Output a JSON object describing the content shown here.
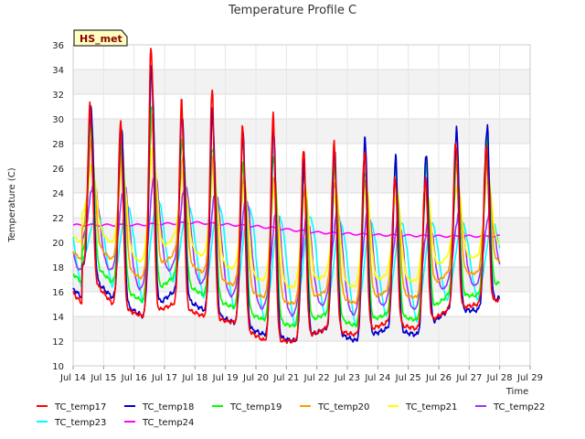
{
  "chart_data": {
    "type": "line",
    "title": "Temperature Profile C",
    "xlabel": "Time",
    "ylabel": "Temperature (C)",
    "site_badge": "HS_met",
    "ylim": [
      10,
      36
    ],
    "yticks": [
      10,
      12,
      14,
      16,
      18,
      20,
      22,
      24,
      26,
      28,
      30,
      32,
      34,
      36
    ],
    "xlim": [
      0,
      15
    ],
    "xticks": [
      {
        "x": 0,
        "label": "Jul 14"
      },
      {
        "x": 1,
        "label": "Jul 15"
      },
      {
        "x": 2,
        "label": "Jul 16"
      },
      {
        "x": 3,
        "label": "Jul 17"
      },
      {
        "x": 4,
        "label": "Jul 18"
      },
      {
        "x": 5,
        "label": "Jul 19"
      },
      {
        "x": 6,
        "label": "Jul 20"
      },
      {
        "x": 7,
        "label": "Jul 21"
      },
      {
        "x": 8,
        "label": "Jul 22"
      },
      {
        "x": 9,
        "label": "Jul 23"
      },
      {
        "x": 10,
        "label": "Jul 24"
      },
      {
        "x": 11,
        "label": "Jul 25"
      },
      {
        "x": 12,
        "label": "Jul 26"
      },
      {
        "x": 13,
        "label": "Jul 27"
      },
      {
        "x": 14,
        "label": "Jul 28"
      },
      {
        "x": 15,
        "label": "Jul 29"
      }
    ],
    "grid": true,
    "legend_position": "bottom",
    "days": [
      "Jul 14",
      "Jul 15",
      "Jul 16",
      "Jul 17",
      "Jul 18",
      "Jul 19",
      "Jul 20",
      "Jul 21",
      "Jul 22",
      "Jul 23",
      "Jul 24",
      "Jul 25",
      "Jul 26",
      "Jul 27",
      "Jul 28"
    ],
    "series": [
      {
        "name": "TC_temp17",
        "color": "#ff0000",
        "peaks": [
          31,
          29.5,
          35.5,
          31,
          32,
          29,
          30,
          27.5,
          28,
          27.5,
          25.5,
          25.5,
          28.5,
          28,
          24
        ],
        "troughs": [
          18,
          15.5,
          14,
          16,
          14.5,
          13.5,
          12.5,
          12,
          13,
          12,
          13,
          12.5,
          14.5,
          14.5,
          16
        ]
      },
      {
        "name": "TC_temp18",
        "color": "#0000cc",
        "peaks": [
          31.3,
          30,
          34.5,
          30.5,
          30.5,
          28.5,
          29,
          26,
          27,
          28,
          26.5,
          27,
          29,
          29.5,
          24
        ],
        "troughs": [
          18,
          15,
          14,
          15,
          14,
          13.5,
          12,
          12,
          13,
          12.5,
          13.5,
          13,
          14.5,
          15,
          15.5
        ]
      },
      {
        "name": "TC_temp19",
        "color": "#00ff00",
        "peaks": [
          30,
          28.5,
          31.5,
          28.5,
          28,
          26.5,
          27,
          25.5,
          26,
          25.5,
          26,
          26,
          27,
          28,
          23
        ]
      },
      {
        "name": "TC_temp20",
        "color": "#ff9900",
        "peaks": [
          28,
          27.5,
          30,
          27,
          27,
          25.5,
          25.5,
          24.5,
          25,
          25,
          25,
          24.5,
          26,
          26.5,
          22.5
        ]
      },
      {
        "name": "TC_temp21",
        "color": "#ffff00",
        "peaks": [
          26,
          26,
          27.5,
          25.5,
          25.5,
          24.5,
          24.5,
          24,
          24,
          24.5,
          24,
          24,
          24.5,
          25,
          22
        ]
      },
      {
        "name": "TC_temp22",
        "color": "#9933ff",
        "peaks": [
          24.8,
          24.5,
          25.5,
          24.5,
          24,
          23.5,
          22.5,
          22,
          22.5,
          22.5,
          22,
          22,
          22.5,
          22.5,
          21.5
        ]
      },
      {
        "name": "TC_temp23",
        "color": "#00ffff",
        "peaks": [
          22.5,
          23,
          23.5,
          23,
          23,
          22.8,
          22,
          22,
          21.5,
          21.5,
          21.5,
          21.5,
          21.5,
          21.5,
          21.5
        ]
      },
      {
        "name": "TC_temp24",
        "color": "#ff00ff",
        "points": [
          [
            0,
            21.4
          ],
          [
            2,
            21.4
          ],
          [
            4,
            21.6
          ],
          [
            6,
            21.3
          ],
          [
            8,
            20.8
          ],
          [
            10,
            20.6
          ],
          [
            12,
            20.5
          ],
          [
            14,
            20.5
          ]
        ]
      }
    ]
  }
}
